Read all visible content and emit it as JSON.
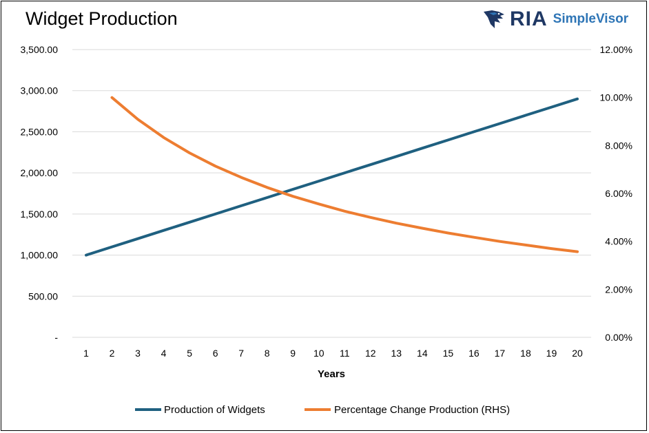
{
  "header": {
    "title": "Widget Production",
    "brand_primary": "RIA",
    "brand_secondary": "SimpleVisor",
    "brand_icon": "eagle-icon"
  },
  "chart_data": {
    "type": "line",
    "title": "Widget Production",
    "xlabel": "Years",
    "ylabel": "",
    "y2label": "",
    "x": [
      1,
      2,
      3,
      4,
      5,
      6,
      7,
      8,
      9,
      10,
      11,
      12,
      13,
      14,
      15,
      16,
      17,
      18,
      19,
      20
    ],
    "ylim": [
      0,
      3500
    ],
    "y2lim": [
      0,
      0.12
    ],
    "yticks": [
      "-",
      "500.00",
      "1,000.00",
      "1,500.00",
      "2,000.00",
      "2,500.00",
      "3,000.00",
      "3,500.00"
    ],
    "y2ticks": [
      "0.00%",
      "2.00%",
      "4.00%",
      "6.00%",
      "8.00%",
      "10.00%",
      "12.00%"
    ],
    "grid": true,
    "legend_position": "bottom",
    "series": [
      {
        "name": "Production of Widgets",
        "axis": "left",
        "color": "#1f6080",
        "values": [
          1000,
          1100,
          1200,
          1300,
          1400,
          1500,
          1600,
          1700,
          1800,
          1900,
          2000,
          2100,
          2200,
          2300,
          2400,
          2500,
          2600,
          2700,
          2800,
          2900
        ]
      },
      {
        "name": "Percentage Change Production (RHS)",
        "axis": "right",
        "color": "#ed7d31",
        "values": [
          null,
          0.1,
          0.0909,
          0.0833,
          0.0769,
          0.0714,
          0.0667,
          0.0625,
          0.0588,
          0.0556,
          0.0526,
          0.05,
          0.0476,
          0.0455,
          0.0435,
          0.0417,
          0.04,
          0.0385,
          0.037,
          0.0357
        ]
      }
    ]
  }
}
